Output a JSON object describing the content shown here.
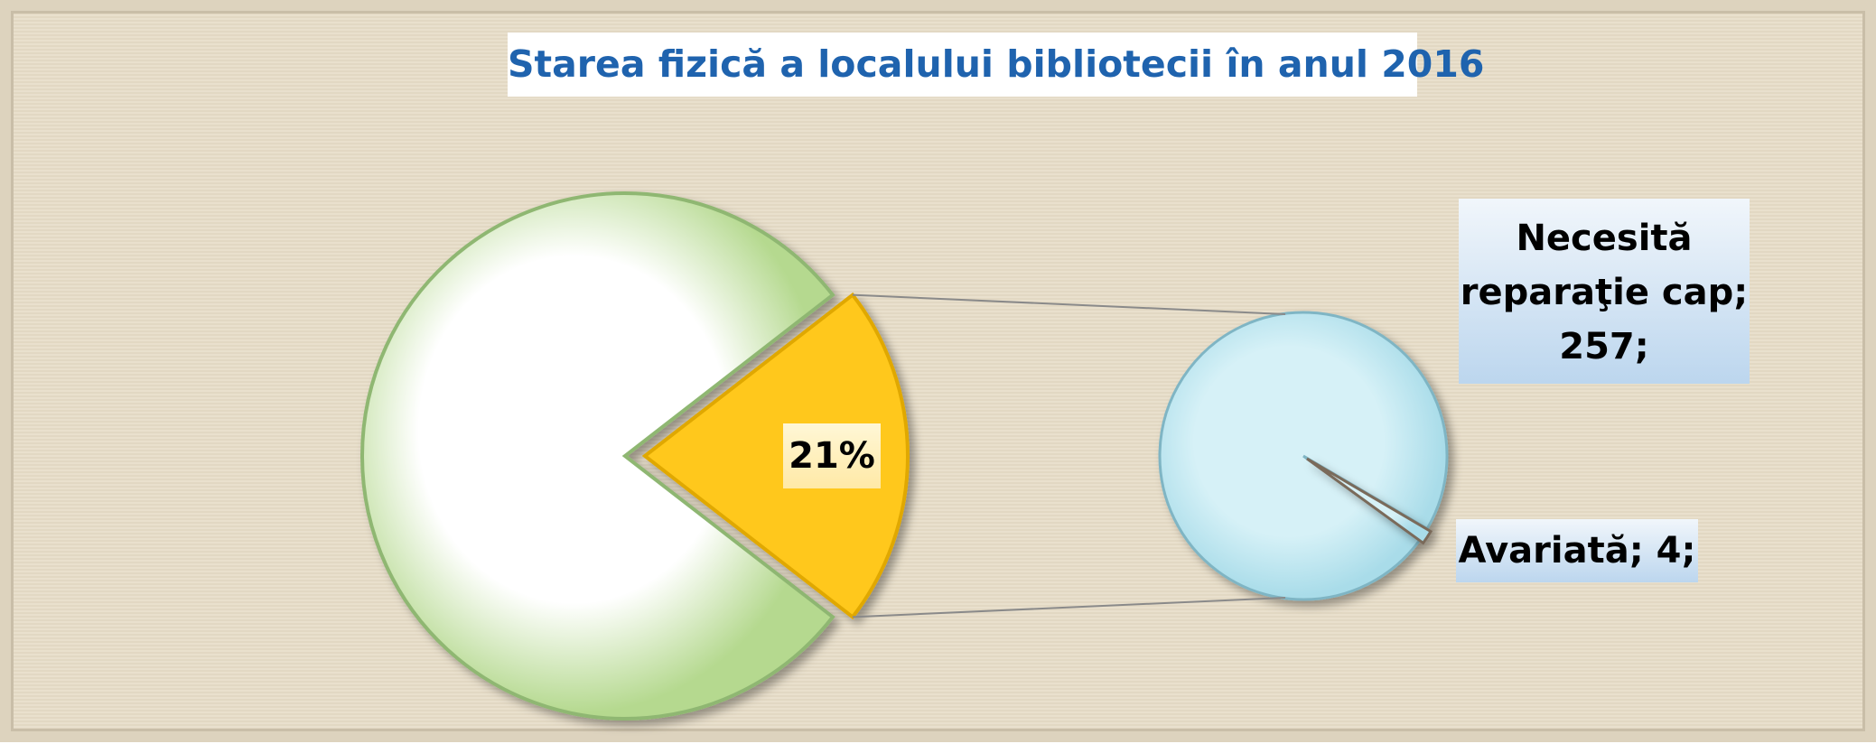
{
  "chart_data": {
    "type": "pie_of_pie",
    "title": "Starea fizică a localului bibliotecii în anul 2016",
    "main": {
      "values": [
        79,
        21
      ],
      "value_labels": [
        null,
        "21%"
      ],
      "colors": [
        "#b5d98f",
        "#ffc81e"
      ]
    },
    "secondary": {
      "values": [
        257,
        4
      ],
      "value_labels": [
        "Necesită reparaţie cap; 257;",
        "Avariată; 4;"
      ],
      "color": "#a9dce9"
    }
  }
}
